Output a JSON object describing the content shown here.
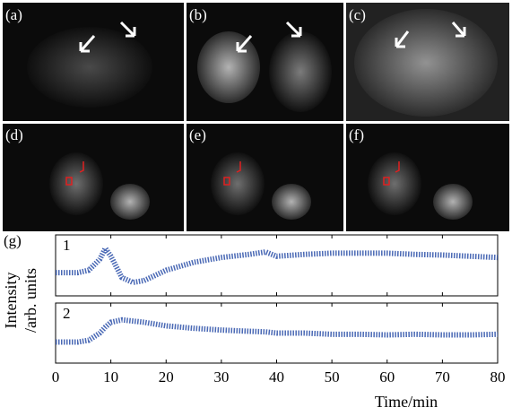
{
  "chart_data": {
    "type": "line",
    "panel_labels": [
      "(a)",
      "(b)",
      "(c)",
      "(d)",
      "(e)",
      "(f)",
      "(g)"
    ],
    "x_label": "Time/min",
    "y_label": [
      "Intensity",
      "/arb. units"
    ],
    "xlim": [
      0,
      80
    ],
    "xticks": [
      0,
      10,
      20,
      30,
      40,
      50,
      60,
      70,
      80
    ],
    "ylim": [
      0,
      1
    ],
    "x": [
      0,
      4,
      6,
      8,
      9,
      10,
      12,
      14,
      16,
      20,
      25,
      30,
      35,
      38,
      40,
      45,
      50,
      55,
      60,
      65,
      70,
      75,
      80
    ],
    "series": [
      {
        "name": "1",
        "color": "#2a4fa8",
        "values": [
          0.38,
          0.38,
          0.42,
          0.6,
          0.78,
          0.65,
          0.3,
          0.22,
          0.25,
          0.42,
          0.55,
          0.63,
          0.68,
          0.72,
          0.65,
          0.68,
          0.7,
          0.7,
          0.7,
          0.68,
          0.67,
          0.65,
          0.63
        ]
      },
      {
        "name": "2",
        "color": "#2a4fa8",
        "values": [
          0.35,
          0.35,
          0.38,
          0.5,
          0.6,
          0.68,
          0.72,
          0.7,
          0.68,
          0.62,
          0.58,
          0.55,
          0.53,
          0.52,
          0.5,
          0.5,
          0.48,
          0.48,
          0.47,
          0.48,
          0.47,
          0.47,
          0.48
        ]
      }
    ]
  }
}
